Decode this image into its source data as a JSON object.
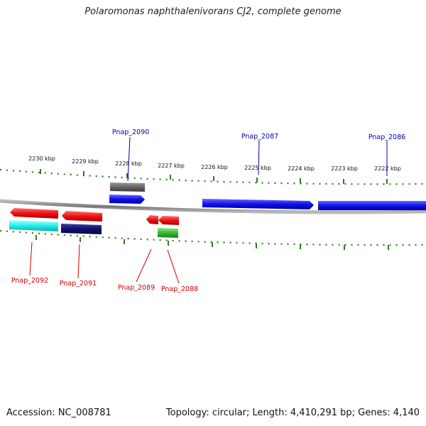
{
  "header": {
    "title": "Polaromonas naphthalenivorans CJ2, complete genome"
  },
  "footer": {
    "accession": "Accession: NC_008781",
    "summary": "Topology: circular; Length: 4,410,291 bp; Genes: 4,140"
  },
  "scale": {
    "labels": [
      "2230 kbp",
      "2229 kbp",
      "2228 kbp",
      "2227 kbp",
      "2226 kbp",
      "2225 kbp",
      "2224 kbp",
      "2223 kbp",
      "2222 kbp"
    ]
  },
  "genes": {
    "forward": [
      "Pnap_2090",
      "Pnap_2087",
      "Pnap_2086"
    ],
    "reverse": [
      "Pnap_2092",
      "Pnap_2091",
      "Pnap_2089",
      "Pnap_2088"
    ]
  },
  "colors": {
    "forward_label": "#0000aa",
    "reverse_label": "#cc0000",
    "tick": "#2e7d1e",
    "backbone": "#888888",
    "blue_gene": "#1010ee",
    "red_gene": "#ee1111",
    "cyan_gene": "#22eeee",
    "navy_gene": "#101070",
    "green_gene": "#33bb33",
    "gray_gene": "#666666"
  }
}
